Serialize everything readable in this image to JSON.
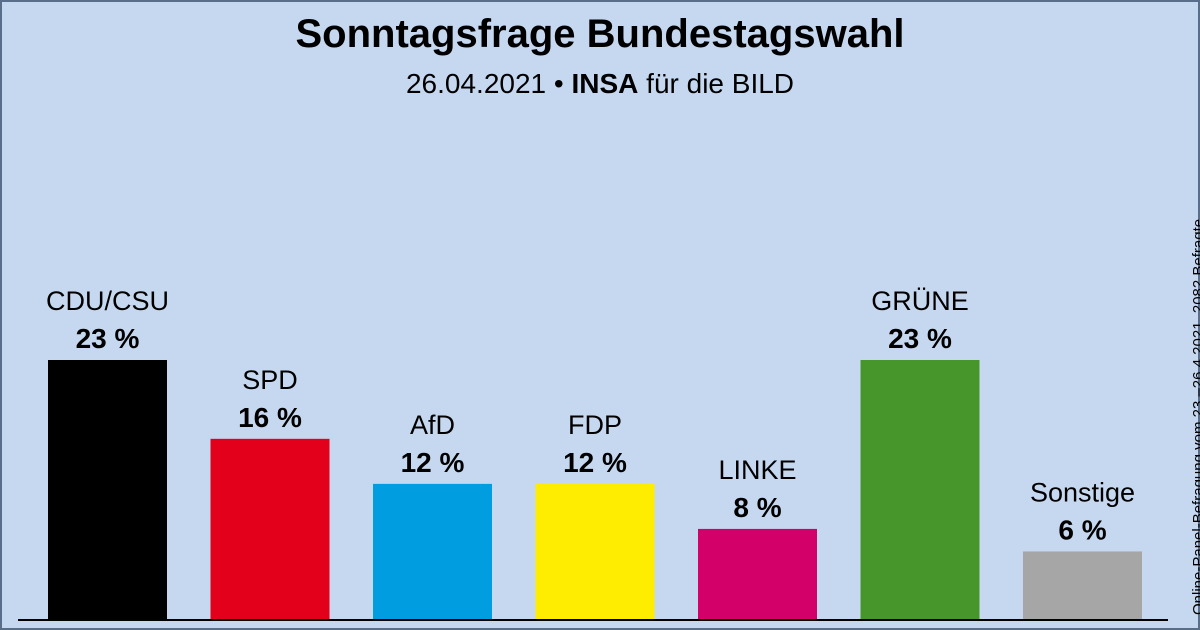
{
  "title": "Sonntagsfrage Bundestagswahl",
  "subtitle": {
    "date": "26.04.2021",
    "separator": "•",
    "institute": "INSA",
    "client": "für die BILD"
  },
  "side_note": "Online-Panel-Befragung vom 23.–26.4.2021, 2082 Befragte",
  "chart_data": {
    "type": "bar",
    "title": "Sonntagsfrage Bundestagswahl",
    "categories": [
      "CDU/CSU",
      "SPD",
      "AfD",
      "FDP",
      "LINKE",
      "GRÜNE",
      "Sonstige"
    ],
    "values": [
      23,
      16,
      12,
      12,
      8,
      23,
      6
    ],
    "value_labels": [
      "23 %",
      "16 %",
      "12 %",
      "12 %",
      "8 %",
      "23 %",
      "6 %"
    ],
    "colors": [
      "#000000",
      "#e3001b",
      "#009ee0",
      "#ffed00",
      "#d4006a",
      "#46962b",
      "#a6a6a6"
    ],
    "unit": "%",
    "ylim": [
      0,
      23
    ]
  }
}
